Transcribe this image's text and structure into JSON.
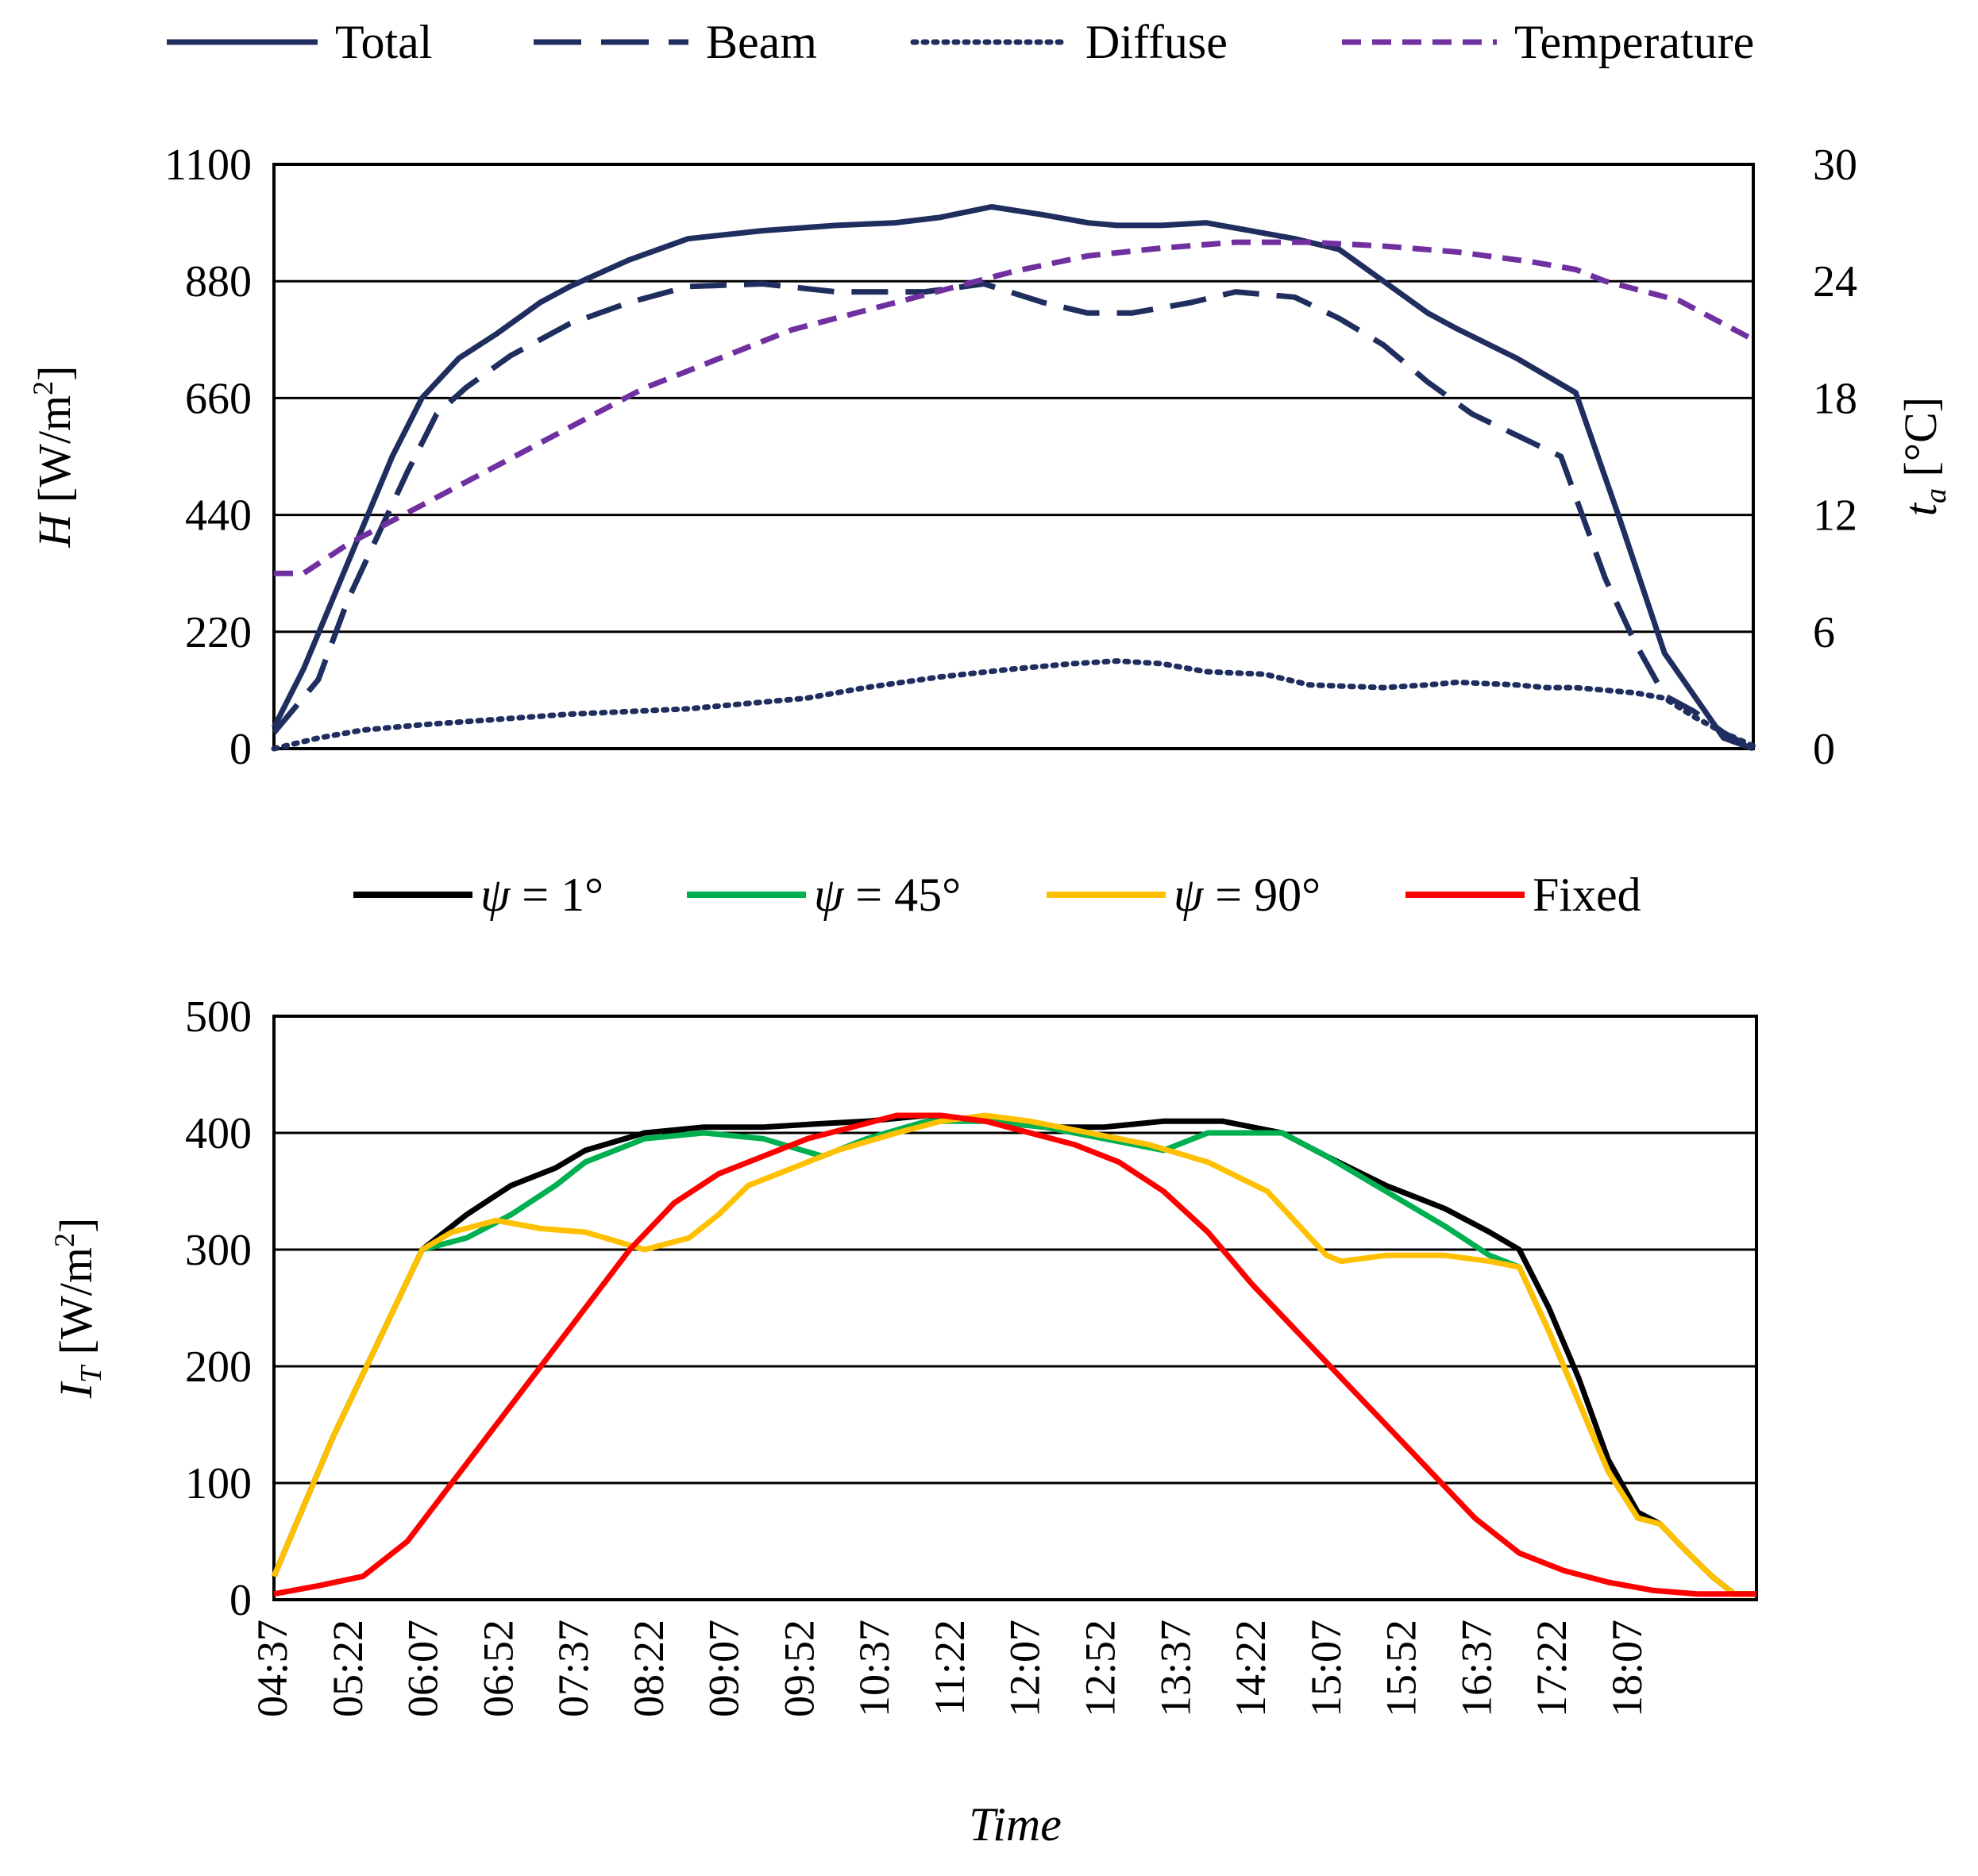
{
  "colors": {
    "navy": "#1f2e5e",
    "purple": "#7030a0",
    "black": "#000000",
    "green": "#00b050",
    "orange": "#ffc000",
    "red": "#ff0000",
    "grid": "#000000"
  },
  "chart_data": [
    {
      "type": "line",
      "panel": "top",
      "y_axis_label": "H [W/m2]",
      "y_axis_label_parts": {
        "symbol": "H",
        "unit": "[W/m",
        "exp": "2",
        "close": "]"
      },
      "y2_axis_label": "t_a [°C]",
      "y2_axis_label_parts": {
        "symbol": "t",
        "sub": "a",
        "unit": "[°C]"
      },
      "ylim": [
        0,
        1100
      ],
      "yticks": [
        "0",
        "220",
        "440",
        "660",
        "880",
        "1100"
      ],
      "y2lim": [
        0,
        30
      ],
      "y2ticks": [
        "0",
        "6",
        "12",
        "18",
        "24",
        "30"
      ],
      "xlim": [
        0,
        100
      ],
      "grid": true,
      "legend": [
        {
          "label": "Total",
          "color": "navy",
          "style": "solid"
        },
        {
          "label": "Beam",
          "color": "navy",
          "style": "dash"
        },
        {
          "label": "Diffuse",
          "color": "navy",
          "style": "dot"
        },
        {
          "label": "Temperature",
          "color": "purple",
          "style": "shortdash"
        }
      ],
      "series": [
        {
          "name": "Total",
          "axis": "left",
          "color": "navy",
          "style": "solid",
          "x": [
            0,
            2,
            5,
            8,
            10,
            12.5,
            15,
            18,
            20,
            24,
            28,
            33,
            38,
            42,
            45,
            48.5,
            52,
            55,
            57,
            60,
            63,
            66,
            69,
            72,
            75,
            78,
            80,
            84,
            88,
            91,
            94,
            96,
            98,
            100
          ],
          "y": [
            40,
            150,
            350,
            550,
            660,
            735,
            780,
            840,
            870,
            920,
            960,
            975,
            985,
            990,
            1000,
            1020,
            1005,
            990,
            985,
            985,
            990,
            975,
            960,
            940,
            880,
            820,
            790,
            735,
            670,
            430,
            180,
            100,
            20,
            0
          ]
        },
        {
          "name": "Beam",
          "axis": "left",
          "color": "navy",
          "style": "dash",
          "x": [
            0,
            3,
            5,
            7,
            9,
            11,
            13,
            16,
            20,
            24,
            28,
            33,
            38,
            44,
            48,
            52,
            55,
            58,
            62,
            65,
            69,
            72,
            75,
            78,
            81,
            84,
            87,
            90,
            92,
            94,
            96,
            98,
            100
          ],
          "y": [
            30,
            130,
            280,
            400,
            520,
            630,
            680,
            740,
            800,
            840,
            870,
            875,
            860,
            860,
            875,
            840,
            820,
            820,
            840,
            860,
            850,
            810,
            760,
            690,
            630,
            590,
            550,
            320,
            200,
            100,
            70,
            30,
            0
          ]
        },
        {
          "name": "Diffuse",
          "axis": "left",
          "color": "navy",
          "style": "dot",
          "x": [
            0,
            3,
            6,
            10,
            15,
            20,
            24,
            28,
            32,
            36,
            40,
            45,
            50,
            54,
            57,
            60,
            63,
            67,
            70,
            75,
            78,
            80,
            84,
            86,
            88,
            90,
            92,
            94,
            96,
            98,
            100
          ],
          "y": [
            0,
            20,
            35,
            45,
            55,
            65,
            70,
            75,
            85,
            95,
            115,
            135,
            150,
            160,
            165,
            160,
            145,
            140,
            120,
            115,
            120,
            125,
            120,
            115,
            115,
            110,
            105,
            95,
            60,
            30,
            5
          ]
        },
        {
          "name": "Temperature",
          "axis": "right",
          "color": "purple",
          "style": "shortdash",
          "x": [
            0,
            2,
            5,
            10,
            15,
            20,
            25,
            30,
            35,
            40,
            45,
            50,
            55,
            60,
            65,
            70,
            75,
            80,
            85,
            88,
            90,
            95,
            100
          ],
          "y": [
            9,
            9,
            10.5,
            12.5,
            14.5,
            16.5,
            18.5,
            20,
            21.5,
            22.5,
            23.5,
            24.5,
            25.3,
            25.7,
            26,
            26,
            25.8,
            25.5,
            25,
            24.6,
            24,
            23,
            21
          ]
        }
      ]
    },
    {
      "type": "line",
      "panel": "bottom",
      "y_axis_label": "I_T [W/m2]",
      "y_axis_label_parts": {
        "symbol": "I",
        "sub": "T",
        "unit": "[W/m",
        "exp": "2",
        "close": "]"
      },
      "xlabel": "Time",
      "ylim": [
        0,
        500
      ],
      "yticks": [
        "0",
        "100",
        "200",
        "300",
        "400",
        "500"
      ],
      "x_tick_labels": [
        "04:37",
        "05:22",
        "06:07",
        "06:52",
        "07:37",
        "08:22",
        "09:07",
        "09:52",
        "10:37",
        "11:22",
        "12:07",
        "12:52",
        "13:37",
        "14:22",
        "15:07",
        "15:52",
        "16:37",
        "17:22",
        "18:07"
      ],
      "xlim": [
        0,
        100
      ],
      "grid": true,
      "legend": [
        {
          "label_prefix": "ψ",
          "label_suffix": " = 1°",
          "color": "black"
        },
        {
          "label_prefix": "ψ",
          "label_suffix": " = 45°",
          "color": "green"
        },
        {
          "label_prefix": "ψ",
          "label_suffix": " = 90°",
          "color": "orange"
        },
        {
          "label_prefix": "",
          "label_suffix": "Fixed",
          "color": "red"
        }
      ],
      "series": [
        {
          "name": "ψ = 1°",
          "color": "black",
          "x": [
            0,
            2,
            4,
            7,
            10,
            13,
            16,
            19,
            21,
            25,
            29,
            33,
            37,
            40,
            44,
            48,
            52,
            56,
            60,
            64,
            68,
            71,
            75,
            79,
            82,
            84,
            86,
            88,
            90,
            92,
            93.5,
            95,
            97,
            98.5,
            100
          ],
          "y": [
            20,
            80,
            140,
            220,
            300,
            330,
            355,
            370,
            385,
            400,
            405,
            405,
            408,
            410,
            415,
            410,
            405,
            405,
            410,
            410,
            400,
            380,
            355,
            335,
            315,
            300,
            250,
            190,
            120,
            75,
            65,
            45,
            20,
            5,
            5
          ]
        },
        {
          "name": "ψ = 45°",
          "color": "green",
          "x": [
            0,
            2,
            4,
            7,
            10,
            13,
            16,
            19,
            21,
            25,
            29,
            33,
            37,
            40,
            44,
            48,
            52,
            56,
            60,
            63,
            66,
            68,
            71,
            75,
            79,
            82,
            84,
            86,
            88,
            90,
            92,
            93.5,
            95,
            97,
            98.5,
            100
          ],
          "y": [
            20,
            80,
            140,
            220,
            300,
            310,
            330,
            355,
            375,
            395,
            400,
            395,
            380,
            395,
            410,
            410,
            405,
            395,
            385,
            400,
            400,
            400,
            380,
            350,
            320,
            295,
            285,
            230,
            170,
            110,
            70,
            65,
            45,
            20,
            5,
            5
          ]
        },
        {
          "name": "ψ = 90°",
          "color": "orange",
          "x": [
            0,
            2,
            4,
            7,
            10,
            12,
            15,
            18,
            21,
            25,
            28,
            30,
            32,
            35,
            38,
            42,
            45,
            48,
            51,
            55,
            59,
            63,
            67,
            71,
            72,
            75,
            79,
            82,
            84,
            86,
            88,
            90,
            92,
            93.5,
            95,
            97,
            98.5,
            100
          ],
          "y": [
            20,
            80,
            140,
            220,
            300,
            315,
            325,
            318,
            315,
            300,
            310,
            330,
            355,
            370,
            385,
            400,
            410,
            415,
            410,
            400,
            390,
            375,
            350,
            295,
            290,
            295,
            295,
            290,
            285,
            230,
            170,
            110,
            70,
            65,
            45,
            20,
            5,
            5
          ]
        },
        {
          "name": "Fixed",
          "color": "red",
          "x": [
            0,
            3,
            6,
            9,
            12,
            15,
            18,
            21,
            24,
            27,
            30,
            33,
            36,
            39,
            42,
            45,
            48,
            51,
            54,
            57,
            60,
            63,
            66,
            69,
            72,
            75,
            78,
            81,
            84,
            87,
            90,
            93,
            96,
            98,
            100
          ],
          "y": [
            5,
            12,
            20,
            50,
            100,
            150,
            200,
            250,
            300,
            340,
            365,
            380,
            395,
            405,
            415,
            415,
            410,
            400,
            390,
            375,
            350,
            315,
            270,
            230,
            190,
            150,
            110,
            70,
            40,
            25,
            15,
            8,
            5,
            5,
            5
          ]
        }
      ]
    }
  ]
}
